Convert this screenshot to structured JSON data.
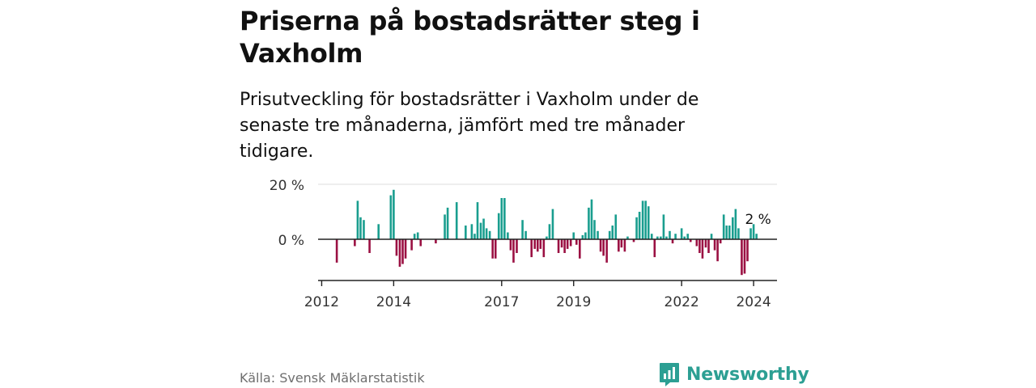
{
  "title": "Priserna på bostadsrätter steg i Vaxholm",
  "subtitle": "Prisutveckling för bostadsrätter i Vaxholm under de senaste tre månaderna, jämfört med tre månader tidigare.",
  "source": "Källa: Svensk Mäklarstatistik",
  "brand": "Newsworthy",
  "colors": {
    "positive": "#1a9e8f",
    "negative": "#9b1143",
    "grid": "#dddddd",
    "axis": "#222222",
    "brand": "#2c9f93"
  },
  "chart_data": {
    "type": "bar",
    "x_unit": "year",
    "y_unit": "%",
    "ylim": [
      -14,
      21
    ],
    "xlim": [
      2011.9,
      2024.65
    ],
    "y_ticks": [
      {
        "value": 0,
        "label": "0 %"
      },
      {
        "value": 20,
        "label": "20 %"
      }
    ],
    "x_ticks": [
      {
        "value": 2012,
        "label": "2012"
      },
      {
        "value": 2014,
        "label": "2014"
      },
      {
        "value": 2017,
        "label": "2017"
      },
      {
        "value": 2019,
        "label": "2019"
      },
      {
        "value": 2022,
        "label": "2022"
      },
      {
        "value": 2024,
        "label": "2024"
      }
    ],
    "last_value_label": "2 %",
    "series": [
      {
        "name": "Prisutveckling",
        "points": [
          [
            2012.42,
            -8.5
          ],
          [
            2012.92,
            -2.5
          ],
          [
            2013.0,
            14
          ],
          [
            2013.08,
            8
          ],
          [
            2013.17,
            7
          ],
          [
            2013.33,
            -5
          ],
          [
            2013.58,
            5.5
          ],
          [
            2013.92,
            16
          ],
          [
            2014.0,
            18
          ],
          [
            2014.08,
            -6
          ],
          [
            2014.17,
            -10
          ],
          [
            2014.25,
            -9
          ],
          [
            2014.33,
            -7
          ],
          [
            2014.5,
            -4
          ],
          [
            2014.58,
            2
          ],
          [
            2014.67,
            2.5
          ],
          [
            2014.75,
            -2.5
          ],
          [
            2015.17,
            -1.5
          ],
          [
            2015.42,
            9
          ],
          [
            2015.5,
            11.5
          ],
          [
            2015.75,
            13.5
          ],
          [
            2016.0,
            5
          ],
          [
            2016.17,
            5.5
          ],
          [
            2016.25,
            2
          ],
          [
            2016.33,
            13.5
          ],
          [
            2016.42,
            6
          ],
          [
            2016.5,
            7.5
          ],
          [
            2016.58,
            4
          ],
          [
            2016.67,
            3
          ],
          [
            2016.75,
            -7
          ],
          [
            2016.83,
            -7
          ],
          [
            2016.92,
            9.5
          ],
          [
            2017.0,
            15
          ],
          [
            2017.08,
            15
          ],
          [
            2017.17,
            2.5
          ],
          [
            2017.25,
            -4
          ],
          [
            2017.33,
            -8.5
          ],
          [
            2017.42,
            -5
          ],
          [
            2017.58,
            7
          ],
          [
            2017.67,
            3
          ],
          [
            2017.83,
            -6.5
          ],
          [
            2017.92,
            -3.5
          ],
          [
            2018.0,
            -4.5
          ],
          [
            2018.08,
            -3.5
          ],
          [
            2018.17,
            -6.5
          ],
          [
            2018.25,
            1
          ],
          [
            2018.33,
            5.5
          ],
          [
            2018.42,
            11
          ],
          [
            2018.58,
            -5
          ],
          [
            2018.67,
            -3
          ],
          [
            2018.75,
            -5
          ],
          [
            2018.83,
            -3.5
          ],
          [
            2018.92,
            -2.5
          ],
          [
            2019.0,
            2.5
          ],
          [
            2019.08,
            -2
          ],
          [
            2019.17,
            -7
          ],
          [
            2019.25,
            1.5
          ],
          [
            2019.33,
            2.5
          ],
          [
            2019.42,
            11.5
          ],
          [
            2019.5,
            14.5
          ],
          [
            2019.58,
            7
          ],
          [
            2019.67,
            3
          ],
          [
            2019.75,
            -4.5
          ],
          [
            2019.83,
            -6
          ],
          [
            2019.92,
            -8.5
          ],
          [
            2020.0,
            3
          ],
          [
            2020.08,
            5
          ],
          [
            2020.17,
            9
          ],
          [
            2020.25,
            -4.5
          ],
          [
            2020.33,
            -3
          ],
          [
            2020.42,
            -4.5
          ],
          [
            2020.5,
            1
          ],
          [
            2020.67,
            -1
          ],
          [
            2020.75,
            8
          ],
          [
            2020.83,
            10
          ],
          [
            2020.92,
            14
          ],
          [
            2021.0,
            14
          ],
          [
            2021.08,
            12
          ],
          [
            2021.17,
            2
          ],
          [
            2021.25,
            -6.5
          ],
          [
            2021.33,
            1
          ],
          [
            2021.42,
            1
          ],
          [
            2021.5,
            9
          ],
          [
            2021.58,
            1
          ],
          [
            2021.67,
            3
          ],
          [
            2021.75,
            -1.5
          ],
          [
            2021.83,
            2
          ],
          [
            2022.0,
            4
          ],
          [
            2022.08,
            1
          ],
          [
            2022.17,
            2
          ],
          [
            2022.25,
            -1
          ],
          [
            2022.42,
            -2.5
          ],
          [
            2022.5,
            -5
          ],
          [
            2022.58,
            -7
          ],
          [
            2022.67,
            -3
          ],
          [
            2022.75,
            -5
          ],
          [
            2022.83,
            2
          ],
          [
            2022.92,
            -4
          ],
          [
            2023.0,
            -8
          ],
          [
            2023.08,
            -1.5
          ],
          [
            2023.17,
            9
          ],
          [
            2023.25,
            5
          ],
          [
            2023.33,
            5
          ],
          [
            2023.42,
            8
          ],
          [
            2023.5,
            11
          ],
          [
            2023.58,
            4
          ],
          [
            2023.67,
            -13
          ],
          [
            2023.75,
            -12.5
          ],
          [
            2023.83,
            -8
          ],
          [
            2023.92,
            4
          ],
          [
            2024.0,
            5.5
          ],
          [
            2024.08,
            2
          ]
        ]
      }
    ]
  }
}
